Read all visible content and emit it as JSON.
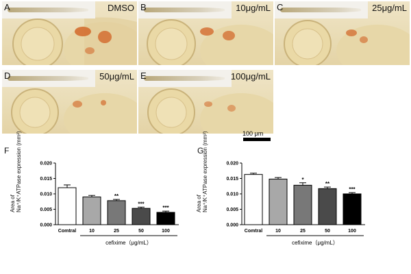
{
  "panels": [
    {
      "letter": "A",
      "condition": "DMSO"
    },
    {
      "letter": "B",
      "condition": "10μg/mL"
    },
    {
      "letter": "C",
      "condition": "25μg/mL"
    },
    {
      "letter": "D",
      "condition": "50μg/mL"
    },
    {
      "letter": "E",
      "condition": "100μg/mL"
    }
  ],
  "scale_bar_label": "100 μm",
  "colors": {
    "bar_control": "#ffffff",
    "bar_10": "#a8a8a8",
    "bar_25": "#787878",
    "bar_50": "#4a4a4a",
    "bar_100": "#000000",
    "stain": "#d05a1a"
  },
  "chart_data": [
    {
      "type": "bar",
      "panel_letter": "F",
      "categories": [
        "Comtral",
        "10",
        "25",
        "50",
        "100"
      ],
      "values": [
        0.012,
        0.009,
        0.0078,
        0.0053,
        0.004
      ],
      "errors": [
        0.0009,
        0.0005,
        0.0004,
        0.0004,
        0.0004
      ],
      "significance": [
        "",
        "",
        "**",
        "***",
        "***"
      ],
      "ylabel_line1": "Area of",
      "ylabel_line2": "Na⁺/K⁺ATPase expression (mm²)",
      "xlabel": "cefixime（μg/mL）",
      "ylim": [
        0,
        0.02
      ],
      "yticks": [
        "0.000",
        "0.005",
        "0.010",
        "0.015",
        "0.020"
      ]
    },
    {
      "type": "bar",
      "panel_letter": "G",
      "categories": [
        "Comtral",
        "10",
        "25",
        "50",
        "100"
      ],
      "values": [
        0.0163,
        0.0148,
        0.0128,
        0.0117,
        0.01
      ],
      "errors": [
        0.0004,
        0.0005,
        0.0008,
        0.0005,
        0.0004
      ],
      "significance": [
        "",
        "",
        "*",
        "**",
        "***"
      ],
      "ylabel_line1": "Area of",
      "ylabel_line2": "Na⁺/K⁺ATPase expression (mm²)",
      "xlabel": "cefixime（μg/mL）",
      "ylim": [
        0,
        0.02
      ],
      "yticks": [
        "0.000",
        "0.005",
        "0.010",
        "0.015",
        "0.020"
      ]
    }
  ]
}
